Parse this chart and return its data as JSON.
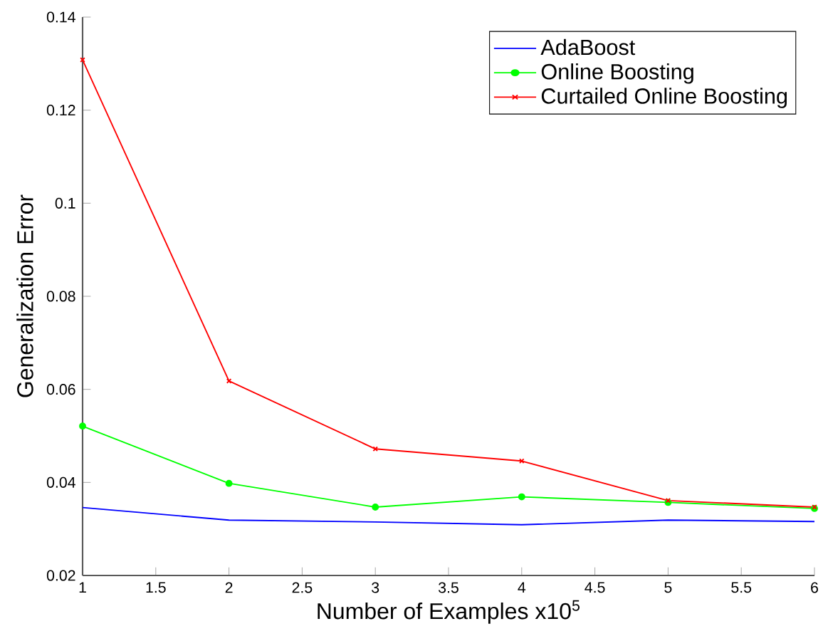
{
  "chart_data": {
    "type": "line",
    "xlabel": "Number of Examples x10$^{5}$",
    "ylabel": "Generalization Error",
    "x": [
      1,
      2,
      3,
      4,
      5,
      6
    ],
    "series": [
      {
        "name": "AdaBoost",
        "color": "#0000ff",
        "marker": "none",
        "values": [
          0.0346,
          0.0319,
          0.0315,
          0.0309,
          0.0319,
          0.0316
        ]
      },
      {
        "name": "Online Boosting",
        "color": "#00ff00",
        "marker": "circle",
        "values": [
          0.0521,
          0.0398,
          0.0347,
          0.0369,
          0.0357,
          0.0344
        ]
      },
      {
        "name": "Curtailed Online Boosting",
        "color": "#ff0000",
        "marker": "cross",
        "values": [
          0.1308,
          0.0618,
          0.0472,
          0.0446,
          0.0361,
          0.0347
        ]
      }
    ],
    "xlim": [
      1,
      6
    ],
    "xticks": [
      1,
      1.5,
      2,
      2.5,
      3,
      3.5,
      4,
      4.5,
      5,
      5.5,
      6
    ],
    "ylim": [
      0.02,
      0.14
    ],
    "yticks": [
      0.02,
      0.04,
      0.06,
      0.08,
      0.1,
      0.12,
      0.14
    ],
    "legend": "top right",
    "grid": false
  }
}
